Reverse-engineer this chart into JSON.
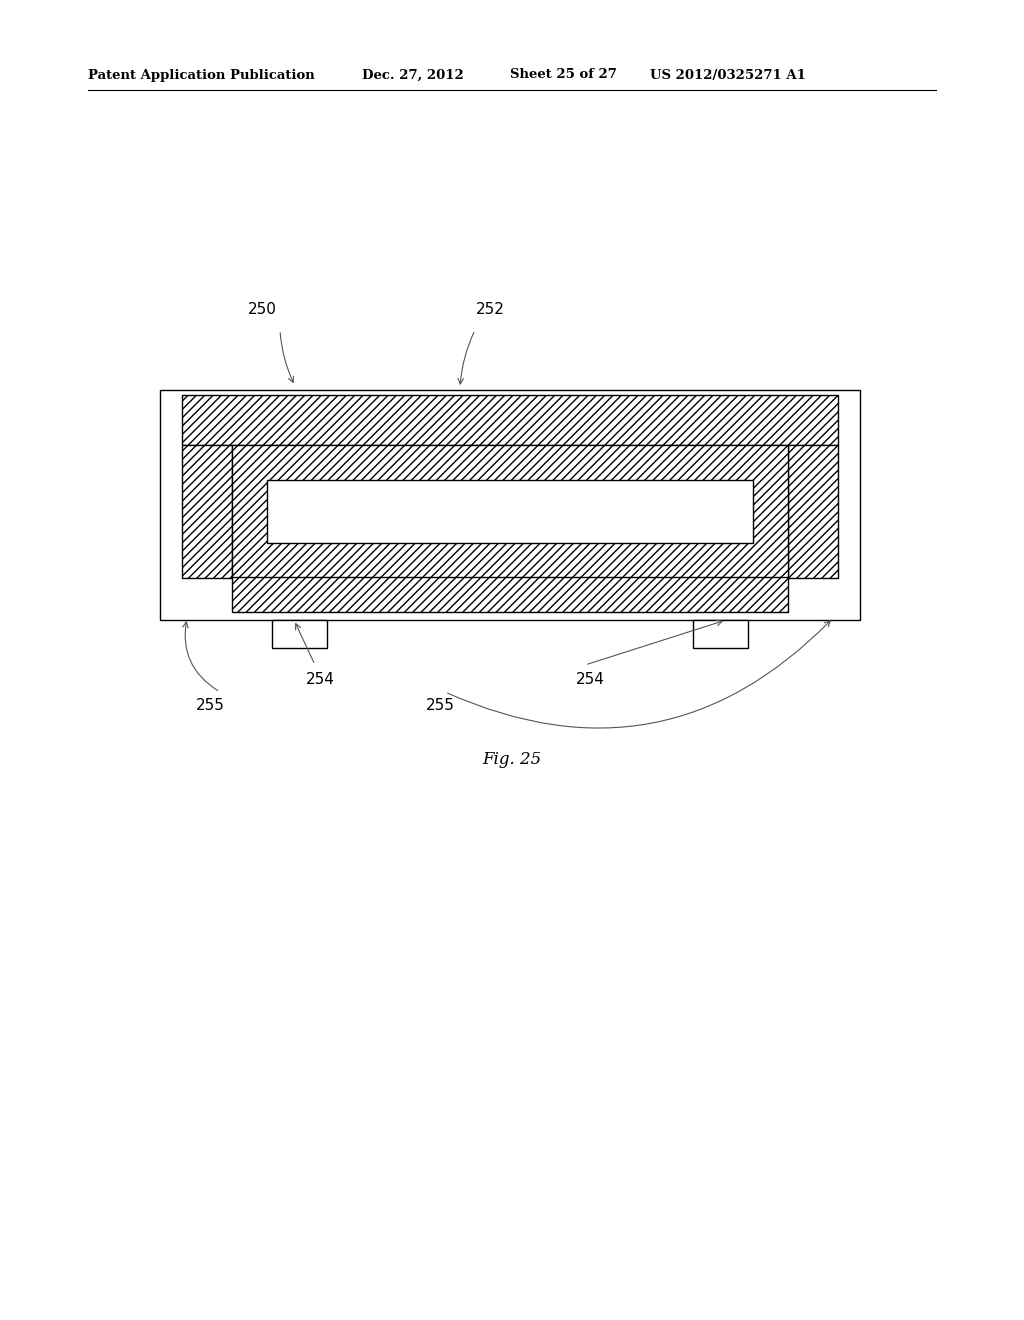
{
  "bg_color": "#ffffff",
  "line_color": "#000000",
  "header_left": "Patent Application Publication",
  "header_mid1": "Dec. 27, 2012",
  "header_mid2": "Sheet 25 of 27",
  "header_right": "US 2012/0325271 A1",
  "fig_label": "Fig. 25"
}
